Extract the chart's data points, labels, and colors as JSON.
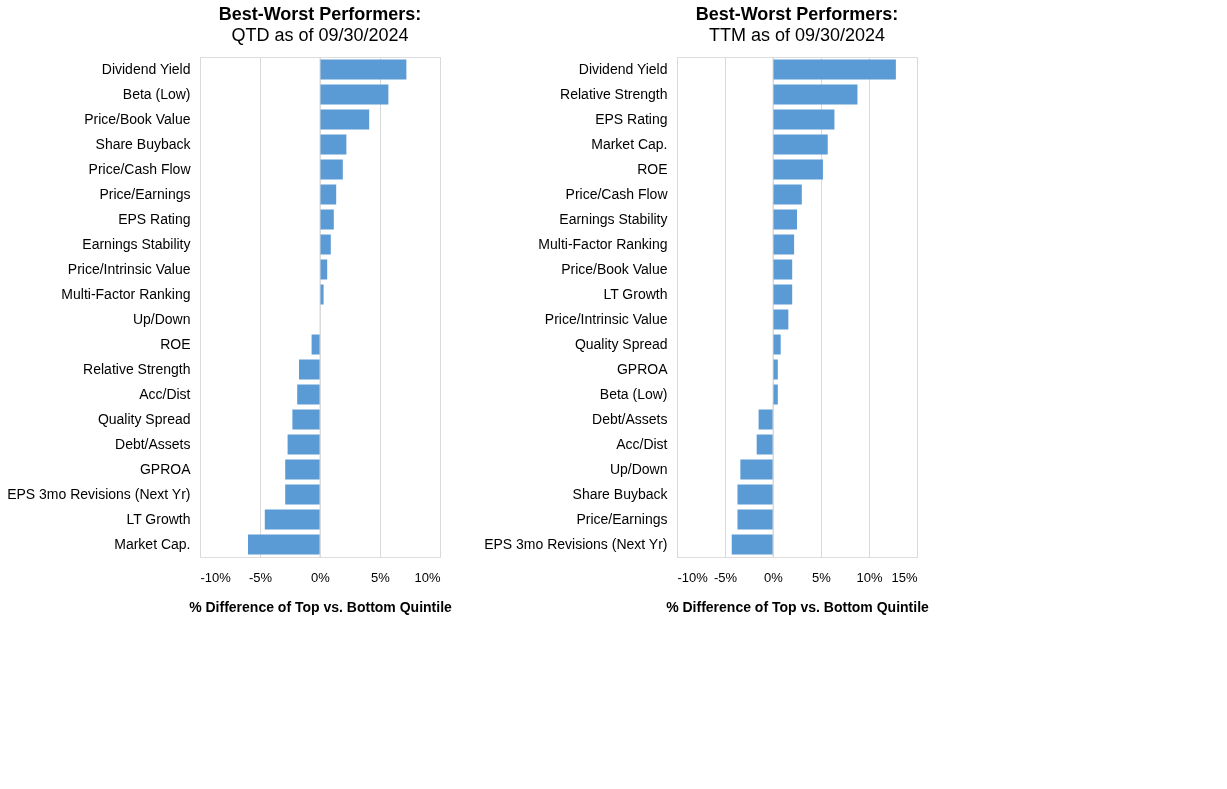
{
  "chart_data": [
    {
      "type": "bar",
      "orientation": "horizontal",
      "title": "Best-Worst Performers:",
      "subtitle": "QTD as of 09/30/2024",
      "xlabel": "% Difference of Top vs. Bottom Quintile",
      "categories": [
        "Dividend Yield",
        "Beta (Low)",
        "Price/Book Value",
        "Share Buyback",
        "Price/Cash Flow",
        "Price/Earnings",
        "EPS Rating",
        "Earnings Stability",
        "Price/Intrinsic Value",
        "Multi-Factor Ranking",
        "Up/Down",
        "ROE",
        "Relative Strength",
        "Acc/Dist",
        "Quality Spread",
        "Debt/Assets",
        "GPROA",
        "EPS 3mo Revisions (Next Yr)",
        "LT Growth",
        "Market Cap."
      ],
      "values": [
        7.2,
        5.7,
        4.1,
        2.2,
        1.9,
        1.35,
        1.15,
        0.9,
        0.6,
        0.3,
        0,
        -0.7,
        -1.75,
        -1.9,
        -2.3,
        -2.7,
        -2.9,
        -2.9,
        -4.6,
        -6.0
      ],
      "color": "#5b9bd5",
      "xlim": [
        -10,
        10
      ],
      "xticks": [
        {
          "value": -10,
          "label": "-10%"
        },
        {
          "value": -5,
          "label": "-5%"
        },
        {
          "value": 0,
          "label": "0%"
        },
        {
          "value": 5,
          "label": "5%"
        },
        {
          "value": 10,
          "label": "10%"
        }
      ],
      "grid": "x"
    },
    {
      "type": "bar",
      "orientation": "horizontal",
      "title": "Best-Worst Performers:",
      "subtitle": "TTM as of 09/30/2024",
      "xlabel": "% Difference of Top vs. Bottom Quintile",
      "categories": [
        "Dividend Yield",
        "Relative Strength",
        "EPS Rating",
        "Market Cap.",
        "ROE",
        "Price/Cash Flow",
        "Earnings Stability",
        "Multi-Factor Ranking",
        "Price/Book Value",
        "LT Growth",
        "Price/Intrinsic Value",
        "Quality Spread",
        "GPROA",
        "Beta (Low)",
        "Debt/Assets",
        "Acc/Dist",
        "Up/Down",
        "Share Buyback",
        "Price/Earnings",
        "EPS 3mo Revisions (Next Yr)"
      ],
      "values": [
        12.8,
        8.8,
        6.4,
        5.7,
        5.2,
        3.0,
        2.5,
        2.2,
        2.0,
        2.0,
        1.6,
        0.8,
        0.5,
        0.5,
        -1.5,
        -1.7,
        -3.4,
        -3.7,
        -3.7,
        -4.3
      ],
      "color": "#5b9bd5",
      "xlim": [
        -10,
        15
      ],
      "xticks": [
        {
          "value": -10,
          "label": "-10%"
        },
        {
          "value": -5,
          "label": "-5%"
        },
        {
          "value": 0,
          "label": "0%"
        },
        {
          "value": 5,
          "label": "5%"
        },
        {
          "value": 10,
          "label": "10%"
        },
        {
          "value": 15,
          "label": "15%"
        }
      ],
      "grid": "x"
    }
  ]
}
